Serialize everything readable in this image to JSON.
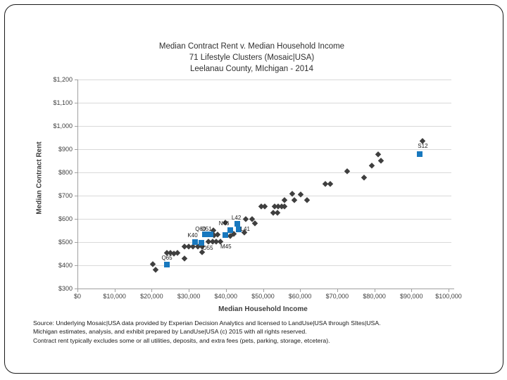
{
  "chart_data": {
    "type": "scatter",
    "title_lines": [
      "Median Contract Rent v. Median Household Income",
      "71 Lifestyle Clusters (Mosaic|USA)",
      "Leelanau County, MIchigan - 2014"
    ],
    "xlabel": "Median Household Income",
    "ylabel": "Median Contract Rent",
    "xlim": [
      0,
      100000
    ],
    "ylim": [
      300,
      1200
    ],
    "grid": "horizontal-only",
    "legend": "none",
    "x_ticks": [
      {
        "v": 0,
        "label": "$0"
      },
      {
        "v": 10000,
        "label": "$10,000"
      },
      {
        "v": 20000,
        "label": "$20,000"
      },
      {
        "v": 30000,
        "label": "$30,000"
      },
      {
        "v": 40000,
        "label": "$40,000"
      },
      {
        "v": 50000,
        "label": "$50,000"
      },
      {
        "v": 60000,
        "label": "$60,000"
      },
      {
        "v": 70000,
        "label": "$70,000"
      },
      {
        "v": 80000,
        "label": "$80,000"
      },
      {
        "v": 90000,
        "label": "$90,000"
      },
      {
        "v": 100000,
        "label": "$100,000"
      }
    ],
    "y_ticks": [
      {
        "v": 300,
        "label": "$300"
      },
      {
        "v": 400,
        "label": "$400"
      },
      {
        "v": 500,
        "label": "$500"
      },
      {
        "v": 600,
        "label": "$600"
      },
      {
        "v": 700,
        "label": "$700"
      },
      {
        "v": 800,
        "label": "$800"
      },
      {
        "v": 900,
        "label": "$900"
      },
      {
        "v": 1000,
        "label": "$1,000"
      },
      {
        "v": 1100,
        "label": "$1,100"
      },
      {
        "v": 1200,
        "label": "$1,200"
      }
    ],
    "series": [
      {
        "name": "unlabeled-lifestyle-clusters",
        "marker": "diamond",
        "color": "#3f3f3f",
        "points": [
          {
            "income": 20300,
            "rent": 405
          },
          {
            "income": 21100,
            "rent": 382
          },
          {
            "income": 24100,
            "rent": 455
          },
          {
            "income": 25000,
            "rent": 455
          },
          {
            "income": 26000,
            "rent": 452
          },
          {
            "income": 26900,
            "rent": 455
          },
          {
            "income": 28800,
            "rent": 430
          },
          {
            "income": 28800,
            "rent": 483
          },
          {
            "income": 30000,
            "rent": 483
          },
          {
            "income": 31100,
            "rent": 483
          },
          {
            "income": 32400,
            "rent": 483
          },
          {
            "income": 33600,
            "rent": 483
          },
          {
            "income": 33600,
            "rent": 458
          },
          {
            "income": 35300,
            "rent": 503
          },
          {
            "income": 36400,
            "rent": 503
          },
          {
            "income": 37400,
            "rent": 503
          },
          {
            "income": 38500,
            "rent": 503
          },
          {
            "income": 36600,
            "rent": 552
          },
          {
            "income": 36800,
            "rent": 530
          },
          {
            "income": 37800,
            "rent": 533
          },
          {
            "income": 41200,
            "rent": 527
          },
          {
            "income": 42100,
            "rent": 536
          },
          {
            "income": 39800,
            "rent": 585
          },
          {
            "income": 45000,
            "rent": 542
          },
          {
            "income": 45400,
            "rent": 600
          },
          {
            "income": 47100,
            "rent": 600
          },
          {
            "income": 47800,
            "rent": 582
          },
          {
            "income": 49500,
            "rent": 655
          },
          {
            "income": 50500,
            "rent": 655
          },
          {
            "income": 53100,
            "rent": 655
          },
          {
            "income": 54100,
            "rent": 655
          },
          {
            "income": 55000,
            "rent": 655
          },
          {
            "income": 55800,
            "rent": 655
          },
          {
            "income": 52700,
            "rent": 627
          },
          {
            "income": 53900,
            "rent": 627
          },
          {
            "income": 55800,
            "rent": 682
          },
          {
            "income": 58400,
            "rent": 682
          },
          {
            "income": 61900,
            "rent": 682
          },
          {
            "income": 57900,
            "rent": 709
          },
          {
            "income": 60200,
            "rent": 706
          },
          {
            "income": 66800,
            "rent": 752
          },
          {
            "income": 68100,
            "rent": 752
          },
          {
            "income": 72700,
            "rent": 806
          },
          {
            "income": 77200,
            "rent": 779
          },
          {
            "income": 79300,
            "rent": 830
          },
          {
            "income": 81000,
            "rent": 879
          },
          {
            "income": 81800,
            "rent": 851
          },
          {
            "income": 93000,
            "rent": 936
          }
        ]
      },
      {
        "name": "labeled-lifestyle-clusters",
        "marker": "square",
        "color": "#1878be",
        "points": [
          {
            "cluster": "Q65",
            "income": 24100,
            "rent": 403,
            "dx": 0,
            "dy": -9
          },
          {
            "cluster": "K40",
            "income": 31600,
            "rent": 501,
            "dx": -3,
            "dy": -9
          },
          {
            "cluster": "O55",
            "income": 33400,
            "rent": 498,
            "dx": 9,
            "dy": 8
          },
          {
            "cluster": "Q60",
            "income": 34300,
            "rent": 532,
            "dx": -6,
            "dy": -7
          },
          {
            "cluster": "O51",
            "income": 35900,
            "rent": 532,
            "dx": -6,
            "dy": -7
          },
          {
            "cluster": "M45",
            "income": 39800,
            "rent": 529,
            "dx": 1,
            "dy": 17
          },
          {
            "cluster": "N46",
            "income": 41200,
            "rent": 553,
            "dx": -9,
            "dy": -9
          },
          {
            "cluster": "L41",
            "income": 43500,
            "rent": 554,
            "dx": 9,
            "dy": 0
          },
          {
            "cluster": "L42",
            "income": 43000,
            "rent": 580,
            "dx": -1,
            "dy": -8
          },
          {
            "cluster": "S12",
            "income": 92300,
            "rent": 880,
            "dx": 4,
            "dy": -11
          }
        ]
      }
    ]
  },
  "source": {
    "lines": [
      "Source: Underlying Mosaic|USA data provided by Experian Decision Analytics and licensed to LandUse|USA through SItes|USA.",
      "Michigan estimates, analysis, and exhibit prepared by LandUse|USA (c) 2015 with all rights reserved.",
      "Contract rent typically excludes some or all utilities, deposits, and extra fees (pets, parking, storage, etcetera)."
    ]
  }
}
